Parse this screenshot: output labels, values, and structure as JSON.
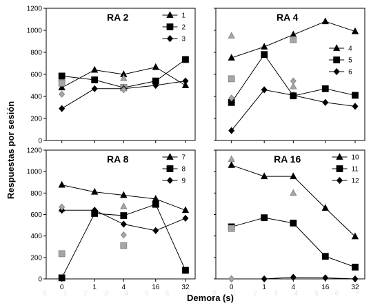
{
  "ylabel": "Respuestas por sesión",
  "xlabel": "Demora (s)",
  "ghost_ticks": [
    "0",
    "1",
    "2",
    "3",
    "4",
    "5",
    "6",
    "7"
  ],
  "colors": {
    "line": "#000000",
    "probe_fill": "#a6a6a6",
    "probe_stroke": "#7f7f7f"
  },
  "chart_data": [
    {
      "type": "line",
      "title": "RA 2",
      "x": [
        "0",
        "1",
        "4",
        "16",
        "32"
      ],
      "ylim": [
        0,
        1200
      ],
      "yticks": [
        "0",
        "200",
        "400",
        "600",
        "800",
        "1000",
        "1200"
      ],
      "legend_position": "top-right",
      "series": [
        {
          "name": "1",
          "marker": "triangle",
          "values": [
            480,
            640,
            600,
            665,
            500
          ],
          "probes": [
            {
              "x": "0",
              "y": 560
            },
            {
              "x": "4",
              "y": 565
            }
          ]
        },
        {
          "name": "2",
          "marker": "square",
          "values": [
            585,
            550,
            480,
            540,
            735
          ],
          "probes": [
            {
              "x": "0",
              "y": 520
            },
            {
              "x": "4",
              "y": 480
            }
          ]
        },
        {
          "name": "3",
          "marker": "diamond",
          "values": [
            290,
            470,
            470,
            500,
            540
          ],
          "probes": [
            {
              "x": "0",
              "y": 420
            },
            {
              "x": "4",
              "y": 460
            }
          ]
        }
      ]
    },
    {
      "type": "line",
      "title": "RA 4",
      "x": [
        "0",
        "1",
        "4",
        "16",
        "32"
      ],
      "ylim": [
        0,
        1200
      ],
      "yticks": [
        "0",
        "200",
        "400",
        "600",
        "800",
        "1000",
        "1200"
      ],
      "legend_position": "right",
      "series": [
        {
          "name": "4",
          "marker": "triangle",
          "values": [
            750,
            850,
            960,
            1080,
            990
          ],
          "probes": [
            {
              "x": "0",
              "y": 950
            },
            {
              "x": "4",
              "y": 490
            }
          ]
        },
        {
          "name": "5",
          "marker": "square",
          "values": [
            345,
            780,
            405,
            470,
            410
          ],
          "probes": [
            {
              "x": "0",
              "y": 560
            },
            {
              "x": "4",
              "y": 915
            }
          ]
        },
        {
          "name": "6",
          "marker": "diamond",
          "values": [
            90,
            460,
            410,
            345,
            310
          ],
          "probes": [
            {
              "x": "0",
              "y": 385
            },
            {
              "x": "4",
              "y": 540
            }
          ]
        }
      ]
    },
    {
      "type": "line",
      "title": "RA 8",
      "x": [
        "0",
        "1",
        "4",
        "16",
        "32"
      ],
      "ylim": [
        0,
        1200
      ],
      "yticks": [
        "0",
        "200",
        "400",
        "600",
        "800",
        "1000",
        "1200"
      ],
      "legend_position": "top-right",
      "series": [
        {
          "name": "7",
          "marker": "triangle",
          "values": [
            875,
            810,
            780,
            745,
            640
          ],
          "probes": [
            {
              "x": "0",
              "y": 650
            },
            {
              "x": "4",
              "y": 675
            }
          ]
        },
        {
          "name": "8",
          "marker": "square",
          "values": [
            10,
            610,
            590,
            695,
            80
          ],
          "probes": [
            {
              "x": "0",
              "y": 235
            },
            {
              "x": "4",
              "y": 310
            }
          ]
        },
        {
          "name": "9",
          "marker": "diamond",
          "values": [
            640,
            640,
            510,
            450,
            565
          ],
          "probes": [
            {
              "x": "0",
              "y": 670
            },
            {
              "x": "4",
              "y": 410
            }
          ]
        }
      ]
    },
    {
      "type": "line",
      "title": "RA 16",
      "x": [
        "0",
        "1",
        "4",
        "16",
        "32"
      ],
      "ylim": [
        0,
        1200
      ],
      "yticks": [
        "0",
        "200",
        "400",
        "600",
        "800",
        "1000",
        "1200"
      ],
      "legend_position": "top-right",
      "series": [
        {
          "name": "10",
          "marker": "triangle",
          "values": [
            1060,
            955,
            955,
            660,
            395
          ],
          "probes": [
            {
              "x": "0",
              "y": 1115
            },
            {
              "x": "4",
              "y": 800
            }
          ]
        },
        {
          "name": "11",
          "marker": "square",
          "values": [
            485,
            570,
            520,
            210,
            110
          ],
          "probes": [
            {
              "x": "0",
              "y": 470
            }
          ]
        },
        {
          "name": "12",
          "marker": "diamond",
          "values": [
            0,
            0,
            15,
            10,
            0
          ],
          "probes": [
            {
              "x": "0",
              "y": 0
            }
          ]
        }
      ]
    }
  ]
}
